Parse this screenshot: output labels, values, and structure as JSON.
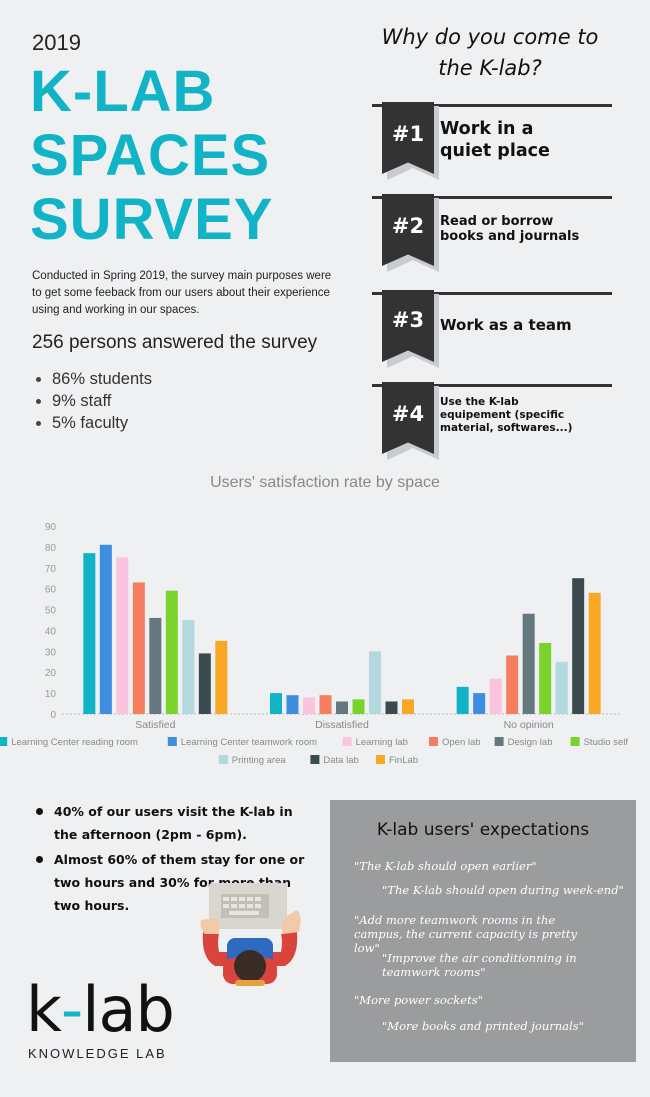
{
  "header": {
    "year": "2019",
    "title_lines": [
      "K-LAB",
      "SPACES",
      "SURVEY"
    ]
  },
  "intro": "Conducted in Spring 2019, the survey main purposes were to get some feeback from our users about their experience using and working in our spaces.",
  "answered": "256 persons answered the survey",
  "breakdown": [
    "86% students",
    "9% staff",
    "5% faculty"
  ],
  "why": {
    "title_line1": "Why do you come to",
    "title_line2": "the K-lab?",
    "reasons": [
      {
        "rank": "#1",
        "line1": "Work in a",
        "line2": "quiet place",
        "line3": ""
      },
      {
        "rank": "#2",
        "line1": "Read or borrow",
        "line2": "books and journals",
        "line3": ""
      },
      {
        "rank": "#3",
        "line1": "Work as a team",
        "line2": "",
        "line3": ""
      },
      {
        "rank": "#4",
        "line1": "Use the K-lab",
        "line2": "equipement (specific",
        "line3": "material, softwares...)"
      }
    ]
  },
  "chart_data": {
    "type": "bar",
    "title": "Users' satisfaction rate by space",
    "categories": [
      "Satisfied",
      "Dissatisfied",
      "No opinion"
    ],
    "ylim": [
      0,
      90
    ],
    "yticks": [
      0,
      10,
      20,
      30,
      40,
      50,
      60,
      70,
      80,
      90
    ],
    "grid": false,
    "legend_position": "bottom",
    "series": [
      {
        "name": "Learning Center reading room",
        "color": "#10b4c6",
        "values": [
          77,
          10,
          13
        ]
      },
      {
        "name": "Learning Center teamwork room",
        "color": "#3d8ee0",
        "values": [
          81,
          9,
          10
        ]
      },
      {
        "name": "Learning lab",
        "color": "#fbc4de",
        "values": [
          75,
          8,
          17
        ]
      },
      {
        "name": "Open lab",
        "color": "#f47e5e",
        "values": [
          63,
          9,
          28
        ]
      },
      {
        "name": "Design lab",
        "color": "#66787f",
        "values": [
          46,
          6,
          48
        ]
      },
      {
        "name": "Studio self",
        "color": "#7ad22c",
        "values": [
          59,
          7,
          34
        ]
      },
      {
        "name": "Printing area",
        "color": "#b3d8de",
        "values": [
          45,
          30,
          25
        ]
      },
      {
        "name": "Data lab",
        "color": "#3a4a4e",
        "values": [
          29,
          6,
          65
        ]
      },
      {
        "name": "FinLab",
        "color": "#f9a825",
        "values": [
          35,
          7,
          58
        ]
      }
    ]
  },
  "facts": [
    "40% of our users visit the K-lab in the afternoon (2pm - 6pm).",
    "Almost 60% of them stay for one or two hours and 30% for more than two hours."
  ],
  "logo": {
    "mark_k": "k",
    "mark_dash": "-",
    "mark_lab": "lab",
    "subtitle": "KNOWLEDGE LAB"
  },
  "expectations": {
    "title": "K-lab users' expectations",
    "quotes": [
      "\"The K-lab should open earlier\"",
      "\"The K-lab should open during week-end\"",
      "\"Add more teamwork rooms in the campus, the current capacity is pretty low\"",
      "\"Improve the air conditionning in teamwork rooms\"",
      "\"More power sockets\"",
      "\"More books and printed journals\""
    ]
  }
}
